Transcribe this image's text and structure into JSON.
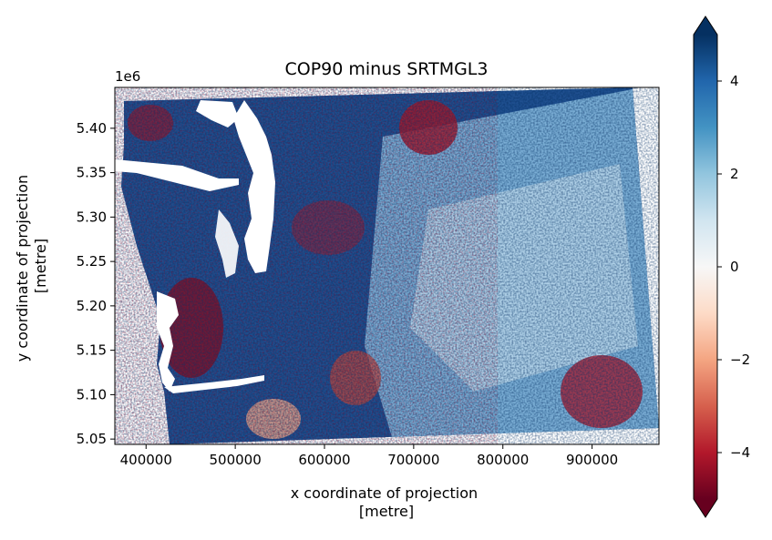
{
  "chart_data": {
    "type": "heatmap",
    "title": "COP90 minus SRTMGL3",
    "xlabel": "x coordinate of projection\n[metre]",
    "ylabel": "y coordinate of projection\n[metre]",
    "y_offset_label": "1e6",
    "xlim": [
      365000,
      975000
    ],
    "ylim": [
      5.044,
      5.446
    ],
    "x_ticks": [
      {
        "value": 400000,
        "label": "400000"
      },
      {
        "value": 500000,
        "label": "500000"
      },
      {
        "value": 600000,
        "label": "600000"
      },
      {
        "value": 700000,
        "label": "700000"
      },
      {
        "value": 800000,
        "label": "800000"
      },
      {
        "value": 900000,
        "label": "900000"
      }
    ],
    "y_ticks": [
      {
        "value": 5.05,
        "label": "5.05"
      },
      {
        "value": 5.1,
        "label": "5.10"
      },
      {
        "value": 5.15,
        "label": "5.15"
      },
      {
        "value": 5.2,
        "label": "5.20"
      },
      {
        "value": 5.25,
        "label": "5.25"
      },
      {
        "value": 5.3,
        "label": "5.30"
      },
      {
        "value": 5.35,
        "label": "5.35"
      },
      {
        "value": 5.4,
        "label": "5.40"
      }
    ],
    "colorbar": {
      "colormap": "RdBu",
      "vmin": -5,
      "vmax": 5,
      "extend": "both",
      "ticks": [
        {
          "value": -4,
          "label": "−4"
        },
        {
          "value": -2,
          "label": "−2"
        },
        {
          "value": 0,
          "label": "0"
        },
        {
          "value": 2,
          "label": "2"
        },
        {
          "value": 4,
          "label": "4"
        }
      ],
      "colors": [
        "#67001f",
        "#b2182b",
        "#d6604d",
        "#f4a582",
        "#fddbc7",
        "#f7f7f7",
        "#d1e5f0",
        "#92c5de",
        "#4393c3",
        "#2166ac",
        "#053061"
      ]
    },
    "grid": false
  }
}
